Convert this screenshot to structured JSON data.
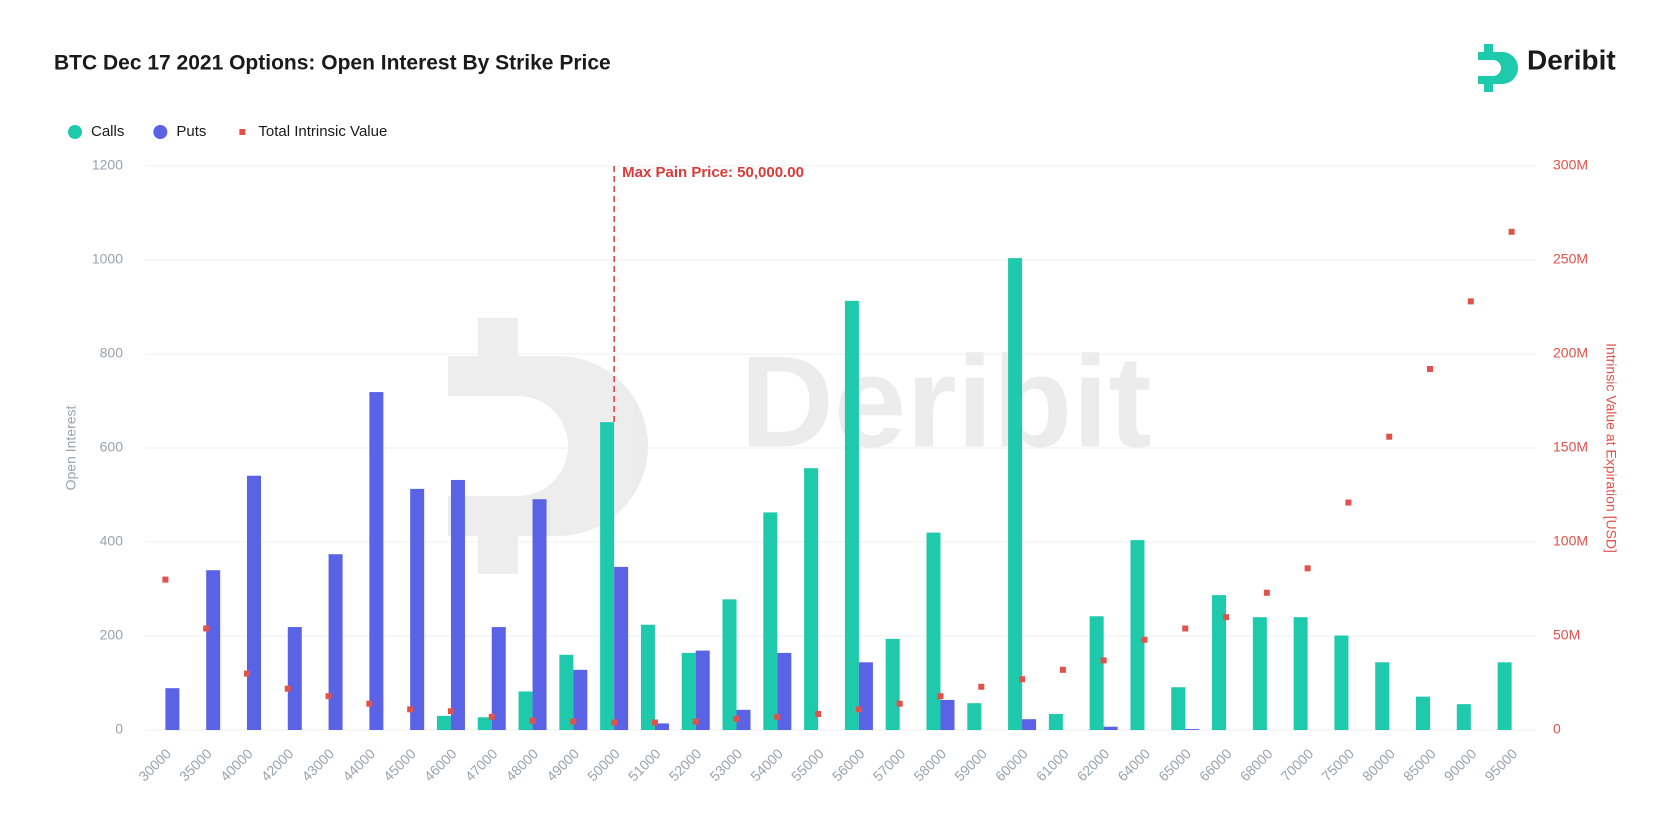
{
  "chart_data": {
    "type": "bar",
    "title": "BTC Dec 17 2021 Options: Open Interest By Strike Price",
    "brand": "Deribit",
    "categories": [
      30000,
      35000,
      40000,
      42000,
      43000,
      44000,
      45000,
      46000,
      47000,
      48000,
      49000,
      50000,
      51000,
      52000,
      53000,
      54000,
      55000,
      56000,
      57000,
      58000,
      59000,
      60000,
      61000,
      62000,
      64000,
      65000,
      66000,
      68000,
      70000,
      75000,
      80000,
      85000,
      90000,
      95000
    ],
    "series": [
      {
        "name": "Calls",
        "type": "bar",
        "color": "#1fc9ab",
        "values": [
          0,
          0,
          0,
          0,
          0,
          0,
          0,
          30,
          27,
          82,
          160,
          655,
          224,
          164,
          278,
          463,
          557,
          913,
          194,
          420,
          57,
          1004,
          34,
          242,
          404,
          91,
          287,
          240,
          240,
          201,
          144,
          71,
          55,
          144
        ]
      },
      {
        "name": "Puts",
        "type": "bar",
        "color": "#5a62e6",
        "values": [
          89,
          340,
          541,
          219,
          374,
          719,
          513,
          532,
          219,
          491,
          128,
          347,
          14,
          169,
          43,
          164,
          0,
          144,
          0,
          64,
          0,
          23,
          0,
          7,
          0,
          2,
          0,
          0,
          0,
          0,
          0,
          0,
          0,
          0
        ]
      },
      {
        "name": "Total Intrinsic Value",
        "type": "scatter",
        "axis": "y2",
        "color": "#e0524b",
        "values": [
          80000000,
          54000000,
          30000000,
          22000000,
          18000000,
          14000000,
          11000000,
          10000000,
          7000000,
          5000000,
          4500000,
          4000000,
          4000000,
          4500000,
          6000000,
          7000000,
          8500000,
          11000000,
          14000000,
          18000000,
          23000000,
          27000000,
          32000000,
          37000000,
          48000000,
          54000000,
          60000000,
          73000000,
          86000000,
          121000000,
          156000000,
          192000000,
          228000000,
          265000000
        ]
      }
    ],
    "y_label": "Open Interest",
    "y2_label": "Intrinsic Value at Expiration [USD]",
    "ylim": [
      0,
      1200
    ],
    "yticks": [
      0,
      200,
      400,
      600,
      800,
      1000,
      1200
    ],
    "y2lim": [
      0,
      300000000
    ],
    "y2ticks": [
      0,
      {
        "value": 50000000,
        "label": "50M"
      },
      {
        "value": 100000000,
        "label": "100M"
      },
      {
        "value": 150000000,
        "label": "150M"
      },
      {
        "value": 200000000,
        "label": "200M"
      },
      {
        "value": 250000000,
        "label": "250M"
      },
      {
        "value": 300000000,
        "label": "300M"
      }
    ],
    "annotation": {
      "text": "Max Pain Price: 50,000.00",
      "x": 50000
    },
    "grid": true,
    "legend": "top-left"
  }
}
